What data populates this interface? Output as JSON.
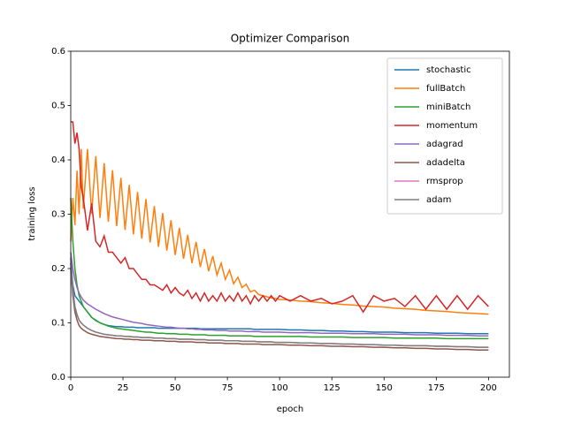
{
  "chart_data": {
    "type": "line",
    "title": "Optimizer Comparison",
    "xlabel": "epoch",
    "ylabel": "training loss",
    "xlim": [
      0,
      210
    ],
    "ylim": [
      0,
      0.6
    ],
    "xticks": [
      0,
      25,
      50,
      75,
      100,
      125,
      150,
      175,
      200
    ],
    "yticks": [
      {
        "value": 0,
        "label": "0.0"
      },
      0.1,
      0.2,
      0.3,
      0.4,
      0.5,
      0.6
    ],
    "legend": "upper right",
    "x": [
      0,
      1,
      2,
      3,
      4,
      5,
      6,
      8,
      10,
      12,
      14,
      16,
      18,
      20,
      22,
      24,
      26,
      28,
      30,
      32,
      34,
      36,
      38,
      40,
      42,
      44,
      46,
      48,
      50,
      52,
      54,
      56,
      58,
      60,
      62,
      64,
      66,
      68,
      70,
      72,
      74,
      76,
      78,
      80,
      82,
      84,
      86,
      88,
      90,
      92,
      94,
      96,
      98,
      100,
      105,
      110,
      115,
      120,
      125,
      130,
      135,
      140,
      145,
      150,
      155,
      160,
      165,
      170,
      175,
      180,
      185,
      190,
      195,
      200
    ],
    "series": [
      {
        "name": "stochastic",
        "color": "#1f77b4",
        "values": [
          0.22,
          0.17,
          0.15,
          0.145,
          0.14,
          0.135,
          0.13,
          0.12,
          0.11,
          0.105,
          0.1,
          0.097,
          0.095,
          0.094,
          0.093,
          0.093,
          0.092,
          0.092,
          0.092,
          0.091,
          0.091,
          0.091,
          0.091,
          0.091,
          0.09,
          0.09,
          0.09,
          0.09,
          0.09,
          0.09,
          0.09,
          0.09,
          0.09,
          0.09,
          0.089,
          0.089,
          0.089,
          0.089,
          0.089,
          0.089,
          0.089,
          0.089,
          0.089,
          0.089,
          0.089,
          0.089,
          0.089,
          0.088,
          0.088,
          0.088,
          0.088,
          0.088,
          0.088,
          0.088,
          0.087,
          0.087,
          0.086,
          0.086,
          0.085,
          0.085,
          0.084,
          0.084,
          0.083,
          0.083,
          0.083,
          0.082,
          0.082,
          0.082,
          0.081,
          0.081,
          0.081,
          0.08,
          0.08,
          0.08
        ]
      },
      {
        "name": "fullBatch",
        "color": "#ff7f0e",
        "values": [
          0.25,
          0.33,
          0.28,
          0.38,
          0.3,
          0.42,
          0.31,
          0.42,
          0.301,
          0.407,
          0.293,
          0.394,
          0.286,
          0.381,
          0.278,
          0.367,
          0.271,
          0.354,
          0.263,
          0.341,
          0.255,
          0.328,
          0.248,
          0.315,
          0.24,
          0.302,
          0.233,
          0.289,
          0.225,
          0.275,
          0.218,
          0.262,
          0.21,
          0.249,
          0.203,
          0.236,
          0.195,
          0.223,
          0.188,
          0.21,
          0.18,
          0.197,
          0.172,
          0.184,
          0.165,
          0.171,
          0.157,
          0.16,
          0.152,
          0.15,
          0.148,
          0.146,
          0.145,
          0.143,
          0.142,
          0.14,
          0.139,
          0.137,
          0.136,
          0.134,
          0.133,
          0.131,
          0.13,
          0.129,
          0.127,
          0.126,
          0.125,
          0.123,
          0.122,
          0.121,
          0.119,
          0.118,
          0.117,
          0.116
        ]
      },
      {
        "name": "miniBatch",
        "color": "#2ca02c",
        "values": [
          0.33,
          0.25,
          0.2,
          0.17,
          0.15,
          0.14,
          0.13,
          0.12,
          0.11,
          0.104,
          0.1,
          0.097,
          0.094,
          0.092,
          0.09,
          0.089,
          0.088,
          0.087,
          0.086,
          0.085,
          0.084,
          0.083,
          0.083,
          0.082,
          0.081,
          0.081,
          0.08,
          0.08,
          0.08,
          0.079,
          0.079,
          0.079,
          0.078,
          0.078,
          0.078,
          0.078,
          0.077,
          0.077,
          0.077,
          0.077,
          0.077,
          0.076,
          0.076,
          0.076,
          0.076,
          0.076,
          0.076,
          0.075,
          0.075,
          0.075,
          0.075,
          0.075,
          0.075,
          0.075,
          0.075,
          0.075,
          0.074,
          0.074,
          0.074,
          0.074,
          0.073,
          0.073,
          0.073,
          0.073,
          0.072,
          0.072,
          0.072,
          0.072,
          0.072,
          0.071,
          0.071,
          0.071,
          0.071,
          0.071
        ]
      },
      {
        "name": "momentum",
        "color": "#d62728",
        "values": [
          0.47,
          0.47,
          0.43,
          0.45,
          0.42,
          0.35,
          0.33,
          0.27,
          0.32,
          0.25,
          0.24,
          0.26,
          0.23,
          0.23,
          0.22,
          0.21,
          0.22,
          0.2,
          0.2,
          0.19,
          0.18,
          0.18,
          0.17,
          0.17,
          0.165,
          0.16,
          0.17,
          0.155,
          0.165,
          0.155,
          0.15,
          0.16,
          0.145,
          0.155,
          0.14,
          0.155,
          0.14,
          0.15,
          0.14,
          0.155,
          0.14,
          0.15,
          0.14,
          0.155,
          0.14,
          0.15,
          0.135,
          0.15,
          0.14,
          0.15,
          0.14,
          0.15,
          0.14,
          0.15,
          0.14,
          0.15,
          0.14,
          0.145,
          0.135,
          0.14,
          0.15,
          0.12,
          0.15,
          0.14,
          0.145,
          0.13,
          0.15,
          0.125,
          0.15,
          0.125,
          0.15,
          0.125,
          0.15,
          0.13
        ]
      },
      {
        "name": "adagrad",
        "color": "#9467bd",
        "values": [
          0.23,
          0.2,
          0.18,
          0.165,
          0.155,
          0.148,
          0.142,
          0.135,
          0.13,
          0.125,
          0.121,
          0.117,
          0.114,
          0.111,
          0.109,
          0.107,
          0.105,
          0.103,
          0.101,
          0.1,
          0.099,
          0.097,
          0.096,
          0.095,
          0.094,
          0.093,
          0.092,
          0.092,
          0.091,
          0.09,
          0.09,
          0.089,
          0.089,
          0.088,
          0.088,
          0.087,
          0.087,
          0.087,
          0.086,
          0.086,
          0.086,
          0.085,
          0.085,
          0.085,
          0.085,
          0.084,
          0.084,
          0.084,
          0.084,
          0.083,
          0.083,
          0.083,
          0.083,
          0.083,
          0.082,
          0.082,
          0.082,
          0.081,
          0.081,
          0.081,
          0.08,
          0.08,
          0.08,
          0.079,
          0.079,
          0.079,
          0.078,
          0.078,
          0.078,
          0.077,
          0.077,
          0.077,
          0.076,
          0.076
        ]
      },
      {
        "name": "adadelta",
        "color": "#8c564b",
        "values": [
          0.2,
          0.15,
          0.12,
          0.105,
          0.095,
          0.09,
          0.087,
          0.082,
          0.079,
          0.077,
          0.075,
          0.074,
          0.073,
          0.072,
          0.071,
          0.071,
          0.07,
          0.07,
          0.069,
          0.069,
          0.068,
          0.068,
          0.068,
          0.067,
          0.067,
          0.067,
          0.066,
          0.066,
          0.066,
          0.065,
          0.065,
          0.065,
          0.065,
          0.064,
          0.064,
          0.064,
          0.063,
          0.063,
          0.063,
          0.063,
          0.062,
          0.062,
          0.062,
          0.062,
          0.061,
          0.061,
          0.061,
          0.061,
          0.061,
          0.06,
          0.06,
          0.06,
          0.06,
          0.06,
          0.059,
          0.059,
          0.058,
          0.058,
          0.057,
          0.057,
          0.056,
          0.056,
          0.055,
          0.055,
          0.054,
          0.054,
          0.053,
          0.053,
          0.052,
          0.052,
          0.051,
          0.051,
          0.05,
          0.05
        ]
      },
      {
        "name": "rmsprop",
        "color": "#e377c2",
        "values": [
          0.21,
          0.16,
          0.13,
          0.115,
          0.105,
          0.1,
          0.096,
          0.09,
          0.086,
          0.083,
          0.081,
          0.079,
          0.078,
          0.077,
          0.076,
          0.076,
          0.075,
          0.075,
          0.074,
          0.074,
          0.073,
          0.073,
          0.073,
          0.072,
          0.072,
          0.072,
          0.071,
          0.071,
          0.071,
          0.07,
          0.07,
          0.07,
          0.07,
          0.069,
          0.069,
          0.069,
          0.068,
          0.068,
          0.068,
          0.068,
          0.067,
          0.067,
          0.067,
          0.067,
          0.066,
          0.066,
          0.066,
          0.066,
          0.065,
          0.065,
          0.065,
          0.065,
          0.064,
          0.064,
          0.064,
          0.063,
          0.063,
          0.062,
          0.062,
          0.061,
          0.061,
          0.06,
          0.06,
          0.059,
          0.059,
          0.058,
          0.058,
          0.058,
          0.057,
          0.057,
          0.056,
          0.056,
          0.055,
          0.055
        ]
      },
      {
        "name": "adam",
        "color": "#7f7f7f",
        "values": [
          0.21,
          0.16,
          0.13,
          0.115,
          0.105,
          0.1,
          0.096,
          0.09,
          0.086,
          0.083,
          0.081,
          0.079,
          0.078,
          0.077,
          0.076,
          0.076,
          0.075,
          0.075,
          0.074,
          0.074,
          0.073,
          0.073,
          0.073,
          0.072,
          0.072,
          0.072,
          0.071,
          0.071,
          0.071,
          0.07,
          0.07,
          0.07,
          0.07,
          0.069,
          0.069,
          0.069,
          0.068,
          0.068,
          0.068,
          0.068,
          0.067,
          0.067,
          0.067,
          0.067,
          0.066,
          0.066,
          0.066,
          0.066,
          0.065,
          0.065,
          0.065,
          0.065,
          0.064,
          0.064,
          0.064,
          0.063,
          0.063,
          0.062,
          0.062,
          0.061,
          0.061,
          0.06,
          0.06,
          0.059,
          0.059,
          0.058,
          0.058,
          0.058,
          0.057,
          0.057,
          0.056,
          0.056,
          0.055,
          0.055
        ]
      }
    ]
  }
}
